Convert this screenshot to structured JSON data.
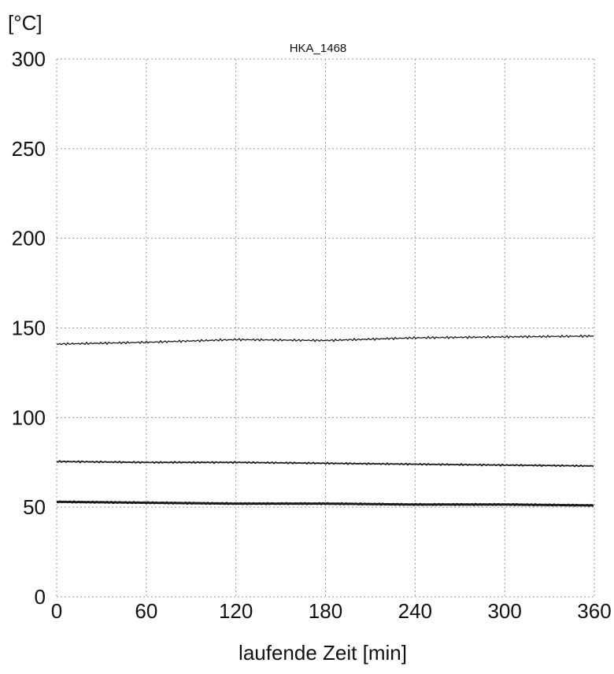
{
  "chart_data": {
    "type": "line",
    "title": "HKA_1468",
    "y_unit": "[°C]",
    "xlabel": "laufende Zeit [min]",
    "ylabel": "",
    "xlim": [
      0,
      360
    ],
    "ylim": [
      0,
      300
    ],
    "x_ticks": [
      0,
      60,
      120,
      180,
      240,
      300,
      360
    ],
    "y_ticks": [
      0,
      50,
      100,
      150,
      200,
      250,
      300
    ],
    "grid": true,
    "legend": "none",
    "series": [
      {
        "x": [
          0,
          60,
          120,
          180,
          240,
          300,
          360
        ],
        "values": [
          141,
          142,
          143.5,
          143,
          144.5,
          145,
          145.5
        ],
        "color": "#1a1a1a"
      },
      {
        "x": [
          0,
          60,
          120,
          180,
          240,
          300,
          360
        ],
        "values": [
          75.5,
          75,
          75,
          74.5,
          74,
          73.5,
          73
        ],
        "color": "#1a1a1a"
      },
      {
        "x": [
          0,
          60,
          120,
          180,
          240,
          300,
          360
        ],
        "values": [
          53,
          52.5,
          52,
          52,
          51.5,
          51.5,
          51
        ],
        "color": "#1a1a1a"
      }
    ]
  }
}
